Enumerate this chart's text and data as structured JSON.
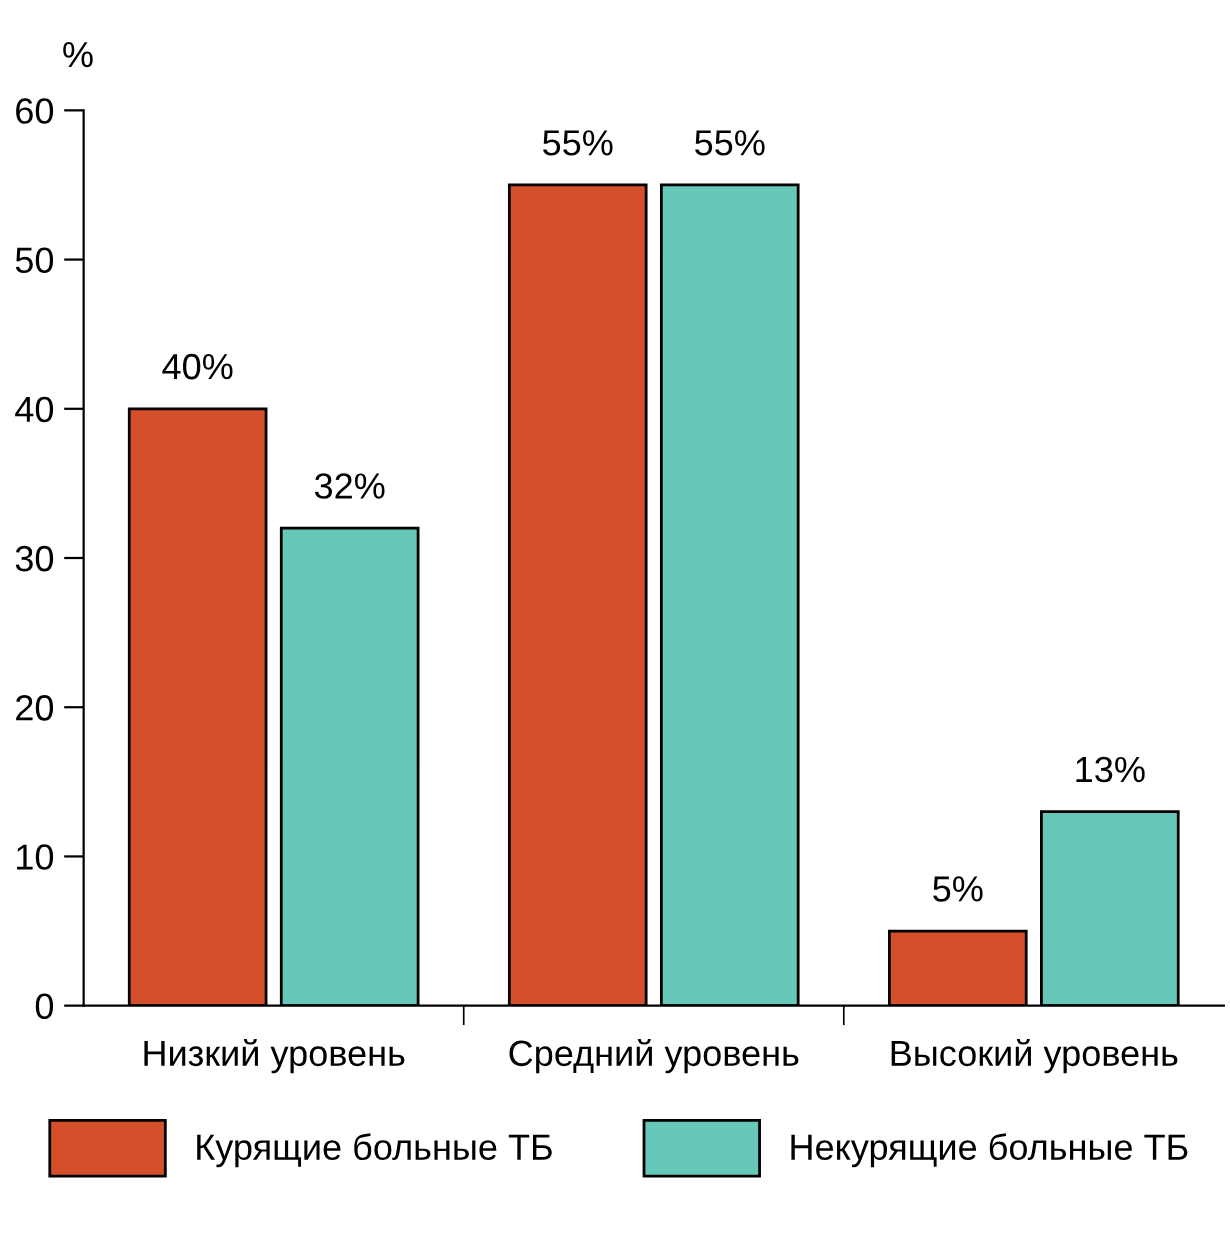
{
  "chart_data": {
    "type": "bar",
    "ylabel": "%",
    "categories": [
      "Низкий уровень",
      "Средний уровень",
      "Высокий уровень"
    ],
    "series": [
      {
        "name": "Курящие больные ТБ",
        "color": "#d54f2a",
        "values": [
          40,
          55,
          5
        ],
        "value_labels": [
          "40%",
          "55%",
          "5%"
        ]
      },
      {
        "name": "Некурящие больные ТБ",
        "color": "#67c7b8",
        "values": [
          32,
          55,
          13
        ],
        "value_labels": [
          "32%",
          "55%",
          "13%"
        ]
      }
    ],
    "ylim": [
      0,
      60
    ],
    "yticks": [
      0,
      10,
      20,
      30,
      40,
      50,
      60
    ],
    "grid": false,
    "legend": "bottom"
  }
}
